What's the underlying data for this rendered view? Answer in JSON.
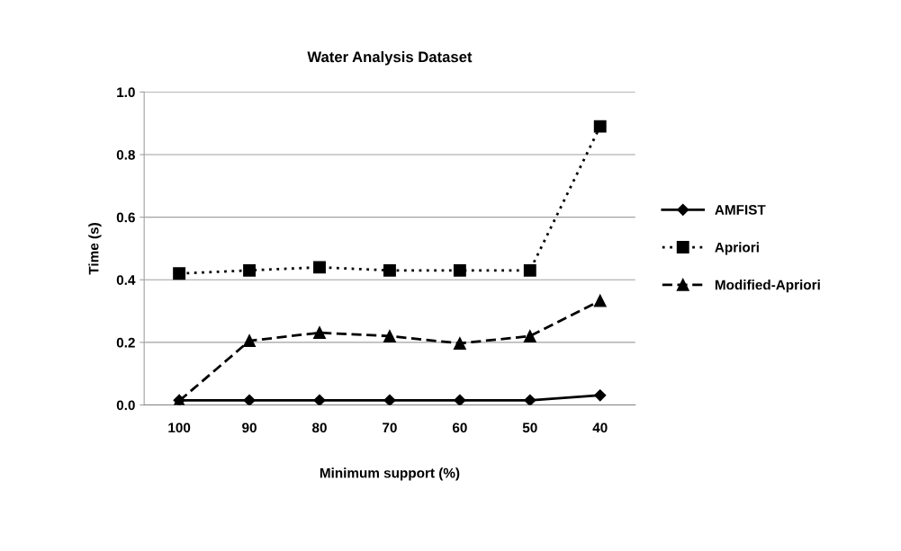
{
  "chart_data": {
    "type": "line",
    "title": "Water Analysis Dataset",
    "xlabel": "Minimum support (%)",
    "ylabel": "Time (s)",
    "categories": [
      "100",
      "90",
      "80",
      "70",
      "60",
      "50",
      "40"
    ],
    "series": [
      {
        "name": "AMFIST",
        "color": "#000000",
        "marker": "diamond",
        "line_style": "solid",
        "values": [
          0.015,
          0.015,
          0.015,
          0.015,
          0.015,
          0.015,
          0.031
        ]
      },
      {
        "name": "Apriori",
        "color": "#000000",
        "marker": "square",
        "line_style": "dotted",
        "values": [
          0.42,
          0.43,
          0.44,
          0.43,
          0.43,
          0.43,
          0.89
        ]
      },
      {
        "name": "Modified-Apriori",
        "color": "#000000",
        "marker": "triangle",
        "line_style": "dashed",
        "values": [
          0.013,
          0.205,
          0.231,
          0.22,
          0.197,
          0.22,
          0.333
        ]
      }
    ],
    "ylim": [
      0,
      1
    ],
    "yticks": [
      {
        "value": 0,
        "label": "0.0"
      },
      0.2,
      0.4,
      0.6,
      0.8,
      {
        "value": 1,
        "label": "1.0"
      }
    ],
    "grid": "y",
    "legend": "right"
  }
}
